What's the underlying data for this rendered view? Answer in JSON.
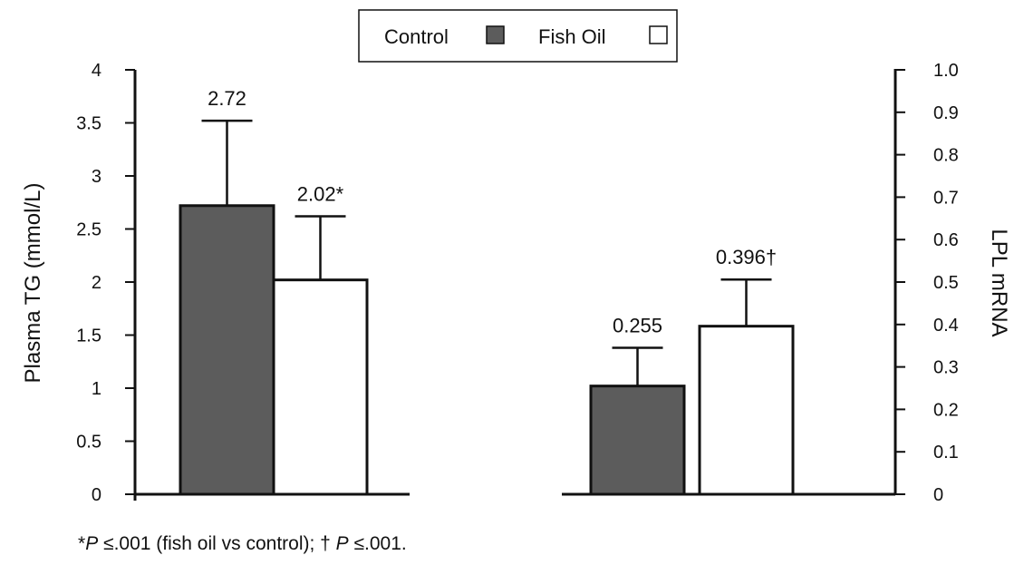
{
  "legend": {
    "items": [
      {
        "label": "Control",
        "color": "#5c5c5c"
      },
      {
        "label": "Fish Oil",
        "color": "#ffffff"
      }
    ]
  },
  "chart_data": {
    "type": "bar",
    "groups": [
      {
        "name": "Plasma TG",
        "axis": "left",
        "bars": [
          {
            "series": "Control",
            "value": 2.72,
            "error": 0.8,
            "label": "2.72"
          },
          {
            "series": "Fish Oil",
            "value": 2.02,
            "error": 0.6,
            "label": "2.02*"
          }
        ]
      },
      {
        "name": "LPL mRNA",
        "axis": "right",
        "bars": [
          {
            "series": "Control",
            "value": 0.255,
            "error": 0.09,
            "label": "0.255"
          },
          {
            "series": "Fish Oil",
            "value": 0.396,
            "error": 0.11,
            "label": "0.396†"
          }
        ]
      }
    ],
    "left_axis": {
      "label": "Plasma TG (mmol/L)",
      "range": [
        0,
        4
      ],
      "ticks": [
        "0",
        "0.5",
        "1",
        "1.5",
        "2",
        "2.5",
        "3",
        "3.5",
        "4"
      ]
    },
    "right_axis": {
      "label": "LPL mRNA",
      "range": [
        0,
        1.0
      ],
      "ticks": [
        "0",
        "0.1",
        "0.2",
        "0.3",
        "0.4",
        "0.5",
        "0.6",
        "0.7",
        "0.8",
        "0.9",
        "1.0"
      ]
    },
    "colors": {
      "Control": "#5c5c5c",
      "Fish Oil": "#ffffff"
    },
    "legend_position": "top-center"
  },
  "footnote": {
    "star": "*",
    "p1": "P",
    "text1": " ≤.001 (fish oil vs control); † ",
    "p2": "P",
    "text2": " ≤.001."
  }
}
